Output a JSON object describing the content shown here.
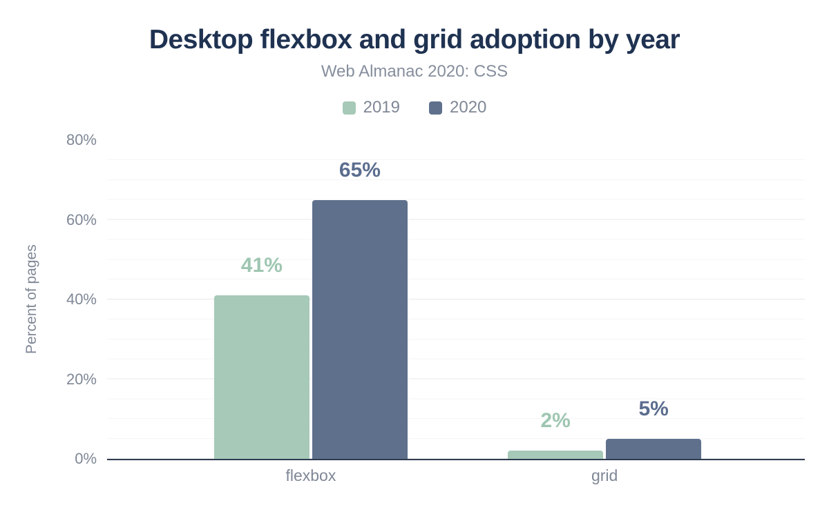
{
  "chart_data": {
    "type": "bar",
    "title": "Desktop flexbox and grid adoption by year",
    "subtitle": "Web Almanac 2020: CSS",
    "categories": [
      "flexbox",
      "grid"
    ],
    "series": [
      {
        "name": "2019",
        "values": [
          41,
          2
        ],
        "labels": [
          "41%",
          "2%"
        ],
        "color": "#a6c9b8",
        "label_color": "#9ec6b1"
      },
      {
        "name": "2020",
        "values": [
          65,
          5
        ],
        "labels": [
          "65%",
          "5%"
        ],
        "color": "#5e708c",
        "label_color": "#5b6d8e"
      }
    ],
    "xlabel": "",
    "ylabel": "Percent of pages",
    "ylim": [
      0,
      80
    ],
    "yticks": [
      "0%",
      "20%",
      "40%",
      "60%",
      "80%"
    ],
    "grid": {
      "orientation": "horizontal",
      "major_step": 20,
      "minor_step": 5
    },
    "legend_position": "top",
    "colors": {
      "title_text": "#1f3251",
      "subtitle_text": "#868e9d",
      "axis_text": "#7f8796",
      "axis_line": "#2f3b4f",
      "major_gridline": "#e8e8e8",
      "minor_gridline": "#f5f5f5",
      "background": "#ffffff"
    }
  }
}
